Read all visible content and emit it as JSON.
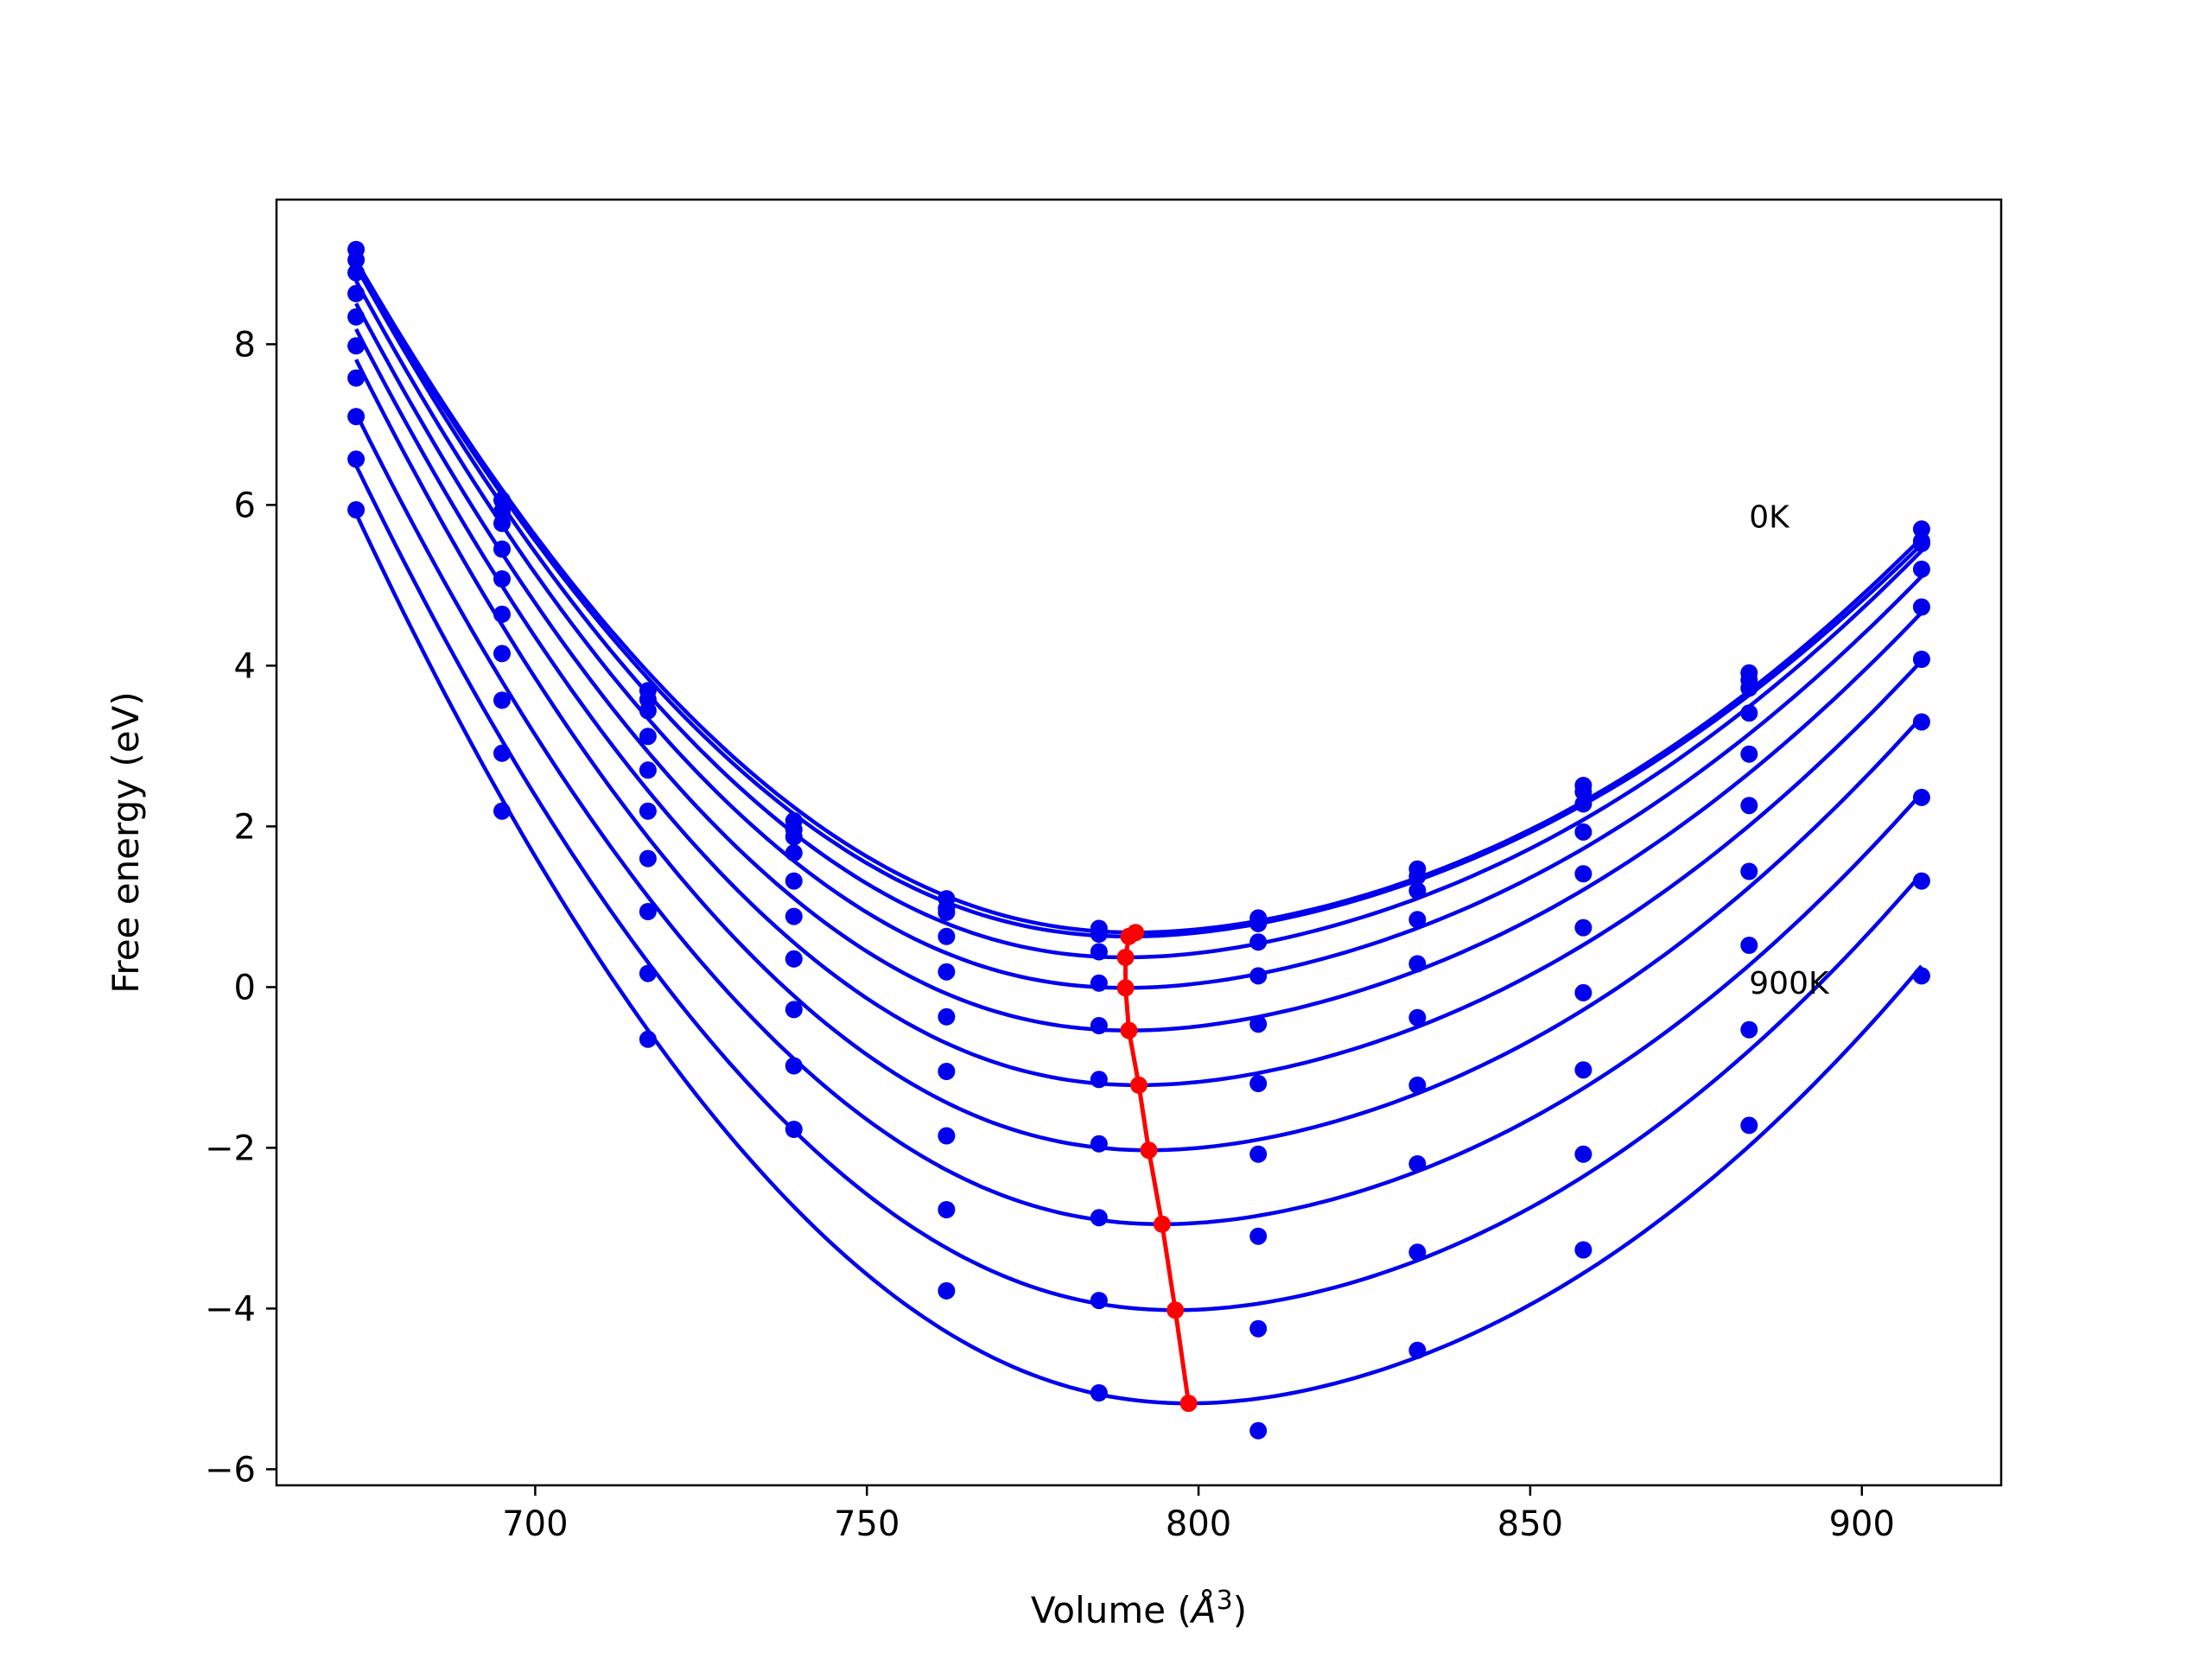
{
  "chart_data": {
    "type": "scatter",
    "title": "",
    "xlabel": "Volume (",
    "xlabel_symbol": "Å",
    "xlabel_sup": "3",
    "xlabel_close": ")",
    "ylabel": "Free energy (eV)",
    "xlim": [
      661,
      921
    ],
    "ylim": [
      -6.2,
      9.8
    ],
    "x_ticks": [
      700,
      750,
      800,
      850,
      900
    ],
    "y_ticks": [
      8,
      6,
      4,
      2,
      0,
      -2,
      -4,
      -6
    ],
    "x_tick_labels": [
      "700",
      "750",
      "800",
      "850",
      "900"
    ],
    "y_tick_labels": [
      "8",
      "6",
      "4",
      "2",
      "0",
      "−2",
      "−4",
      "−6"
    ],
    "grid": false,
    "colors": {
      "curves": "#0000ee",
      "points": "#0000ee",
      "minima": "#ff0000"
    },
    "annotations": [
      {
        "text": "0K",
        "x": 883,
        "y": 5.85
      },
      {
        "text": "900K",
        "x": 883,
        "y": 0.05
      }
    ],
    "volumes": [
      673,
      695,
      717,
      739,
      762,
      785,
      809,
      833,
      858,
      883,
      909
    ],
    "series": [
      {
        "data_points": [
          9.18,
          6.06,
          3.69,
          2.07,
          1.1,
          0.73,
          0.86,
          1.47,
          2.51,
          3.91,
          5.7
        ],
        "fit_min": {
          "x": 790.5,
          "y": 0.68
        },
        "fit_ends": {
          "left": 9.05,
          "right": 5.58
        }
      },
      {
        "data_points": [
          9.05,
          5.92,
          3.58,
          1.96,
          0.98,
          0.66,
          0.79,
          1.38,
          2.43,
          3.82,
          5.55
        ],
        "fit_min": {
          "x": 789.5,
          "y": 0.63
        },
        "fit_ends": {
          "left": 9.02,
          "right": 5.5
        }
      },
      {
        "data_points": [
          8.89,
          5.77,
          3.44,
          1.87,
          0.93,
          0.44,
          0.56,
          1.2,
          2.28,
          3.72,
          5.52
        ],
        "fit_min": {
          "x": 789,
          "y": 0.37
        },
        "fit_ends": {
          "left": 8.98,
          "right": 5.42
        }
      },
      {
        "data_points": [
          8.63,
          5.45,
          3.12,
          1.67,
          0.63,
          0.05,
          0.14,
          0.84,
          1.93,
          3.41,
          5.2
        ],
        "fit_min": {
          "x": 789,
          "y": -0.01
        },
        "fit_ends": {
          "left": 8.8,
          "right": 5.1
        }
      },
      {
        "data_points": [
          8.34,
          5.08,
          2.7,
          1.32,
          0.19,
          -0.48,
          -0.46,
          0.29,
          1.41,
          2.9,
          4.73
        ],
        "fit_min": {
          "x": 789.5,
          "y": -0.54
        },
        "fit_ends": {
          "left": 8.52,
          "right": 4.65
        }
      },
      {
        "data_points": [
          7.98,
          4.64,
          2.19,
          0.88,
          -0.37,
          -1.15,
          -1.2,
          -0.38,
          0.74,
          2.26,
          4.08
        ],
        "fit_min": {
          "x": 791,
          "y": -1.22
        },
        "fit_ends": {
          "left": 8.2,
          "right": 4.05
        }
      },
      {
        "data_points": [
          7.58,
          4.15,
          1.6,
          0.35,
          -1.05,
          -1.95,
          -2.08,
          -1.22,
          -0.07,
          1.44,
          3.3
        ],
        "fit_min": {
          "x": 792.5,
          "y": -2.03
        },
        "fit_ends": {
          "left": 7.82,
          "right": 3.35
        }
      },
      {
        "data_points": [
          7.1,
          3.57,
          0.94,
          -0.28,
          -1.85,
          -2.87,
          -3.1,
          -2.2,
          -1.03,
          0.52,
          2.36
        ],
        "fit_min": {
          "x": 794.5,
          "y": -2.95
        },
        "fit_ends": {
          "left": 7.15,
          "right": 2.4
        }
      },
      {
        "data_points": [
          6.57,
          2.91,
          0.17,
          -0.98,
          -2.77,
          -3.9,
          -4.25,
          -3.3,
          -2.08,
          -0.53,
          1.32
        ],
        "fit_min": {
          "x": 796.5,
          "y": -4.02
        },
        "fit_ends": {
          "left": 6.5,
          "right": 1.4
        }
      },
      {
        "data_points": [
          5.94,
          2.19,
          -0.65,
          -1.77,
          -3.78,
          -5.05,
          -5.52,
          -4.52,
          -3.27,
          -1.72,
          0.14
        ],
        "fit_min": {
          "x": 798.5,
          "y": -5.18
        },
        "fit_ends": {
          "left": 5.9,
          "right": 0.25
        }
      }
    ],
    "minima_line": {
      "x": [
        790.5,
        789.5,
        789,
        789,
        789.5,
        791,
        792.5,
        794.5,
        796.5,
        798.5
      ],
      "y": [
        0.68,
        0.63,
        0.37,
        -0.01,
        -0.54,
        -1.22,
        -2.03,
        -2.95,
        -4.02,
        -5.18
      ]
    }
  }
}
